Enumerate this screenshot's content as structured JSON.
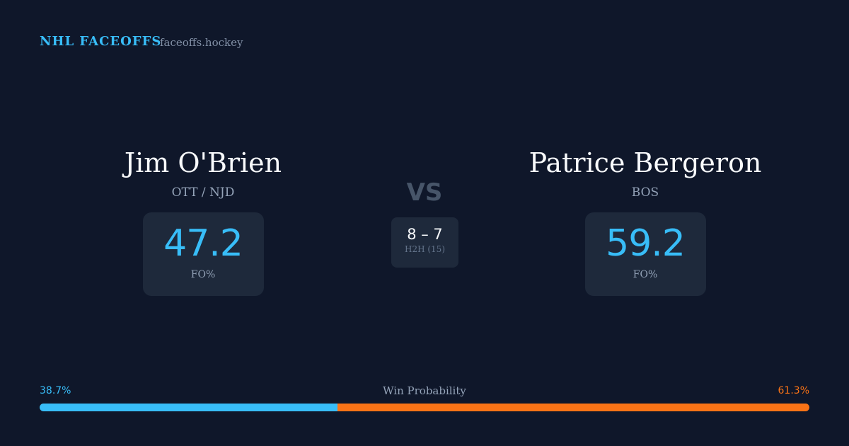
{
  "header": {
    "brand": "NHL FACEOFFS",
    "site": "faceoffs.hockey"
  },
  "players": [
    {
      "name": "Jim O'Brien",
      "team": "OTT / NJD",
      "fo_pct": 47.2,
      "fo_label": "FO%"
    },
    {
      "name": "Patrice Bergeron",
      "team": "BOS",
      "fo_pct": 59.2,
      "fo_label": "FO%"
    }
  ],
  "versus": "VS",
  "h2h": {
    "record": "8 – 7",
    "label": "H2H (15)"
  },
  "win_probability": {
    "title": "Win Probability",
    "left": {
      "value": 38.7,
      "label": "38.7%"
    },
    "right": {
      "value": 61.3,
      "label": "61.3%"
    }
  }
}
